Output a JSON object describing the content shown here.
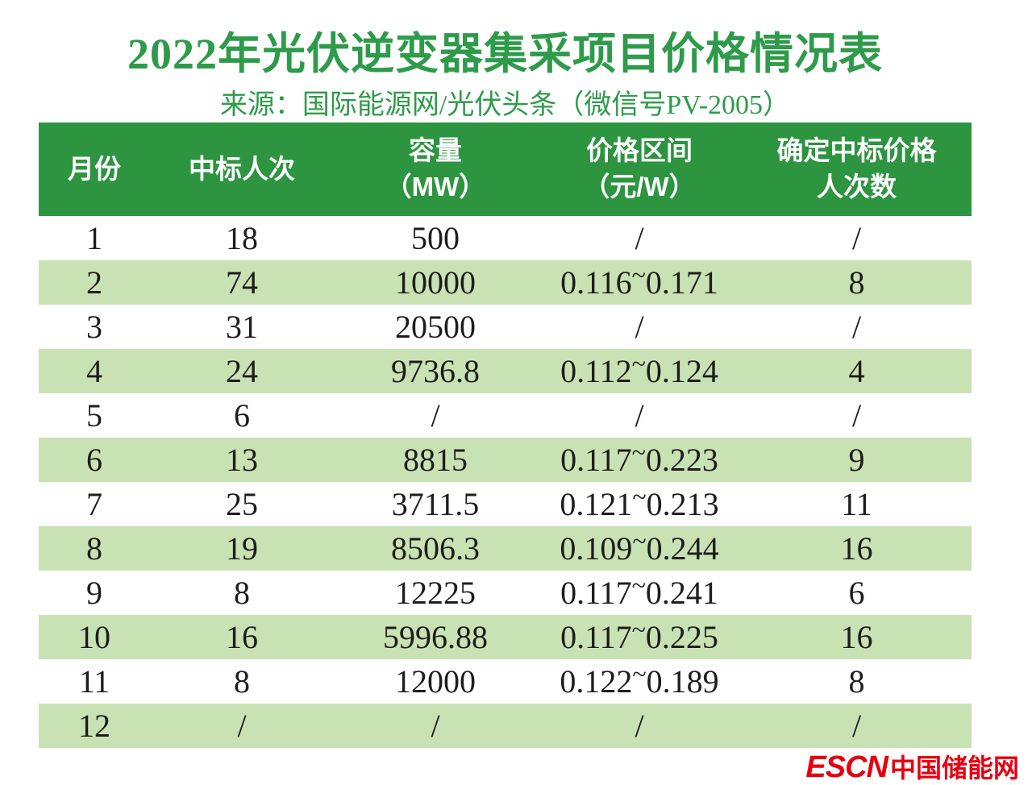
{
  "title": "2022年光伏逆变器集采项目价格情况表",
  "subtitle": "来源：国际能源网/光伏头条（微信号PV-2005）",
  "colors": {
    "title_green": "#2e9b4a",
    "header_bg": "#2d9440",
    "row_alt_bg": "#c9e2b4",
    "logo_red": "#e60012"
  },
  "table": {
    "columns": [
      {
        "label": "月份",
        "sublabel": ""
      },
      {
        "label": "中标人次",
        "sublabel": ""
      },
      {
        "label": "容量",
        "sublabel": "（MW）"
      },
      {
        "label": "价格区间",
        "sublabel": "（元/W）"
      },
      {
        "label": "确定中标价格",
        "sublabel": "人次数"
      }
    ],
    "rows": [
      [
        "1",
        "18",
        "500",
        "/",
        "/"
      ],
      [
        "2",
        "74",
        "10000",
        "0.116~0.171",
        "8"
      ],
      [
        "3",
        "31",
        "20500",
        "/",
        "/"
      ],
      [
        "4",
        "24",
        "9736.8",
        "0.112~0.124",
        "4"
      ],
      [
        "5",
        "6",
        "/",
        "/",
        "/"
      ],
      [
        "6",
        "13",
        "8815",
        "0.117~0.223",
        "9"
      ],
      [
        "7",
        "25",
        "3711.5",
        "0.121~0.213",
        "11"
      ],
      [
        "8",
        "19",
        "8506.3",
        "0.109~0.244",
        "16"
      ],
      [
        "9",
        "8",
        "12225",
        "0.117~0.241",
        "6"
      ],
      [
        "10",
        "16",
        "5996.88",
        "0.117~0.225",
        "16"
      ],
      [
        "11",
        "8",
        "12000",
        "0.122~0.189",
        "8"
      ],
      [
        "12",
        "/",
        "/",
        "/",
        "/"
      ]
    ]
  },
  "watermark": {
    "logo": "ESCN",
    "site_name": "中国储能网"
  }
}
